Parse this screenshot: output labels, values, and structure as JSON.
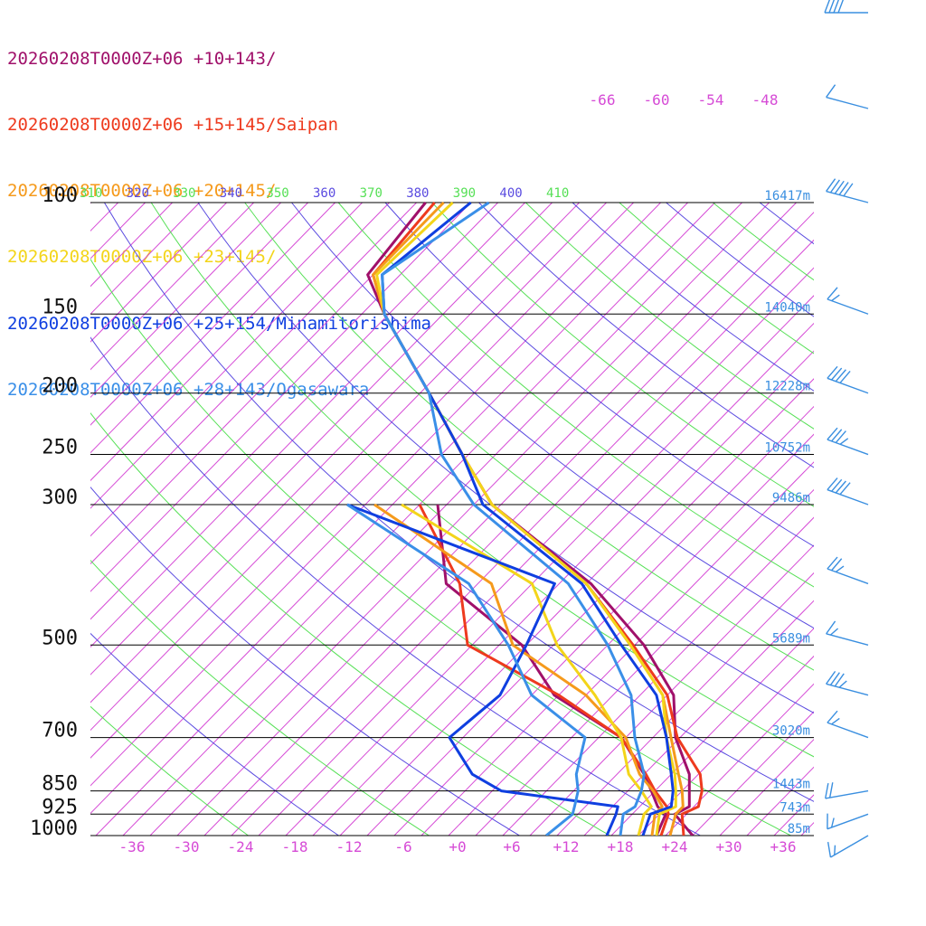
{
  "legend": [
    {
      "label": "20260208T0000Z+06 +10+143/",
      "color": "#a0106a"
    },
    {
      "label": "20260208T0000Z+06 +15+145/Saipan",
      "color": "#ee3a1e"
    },
    {
      "label": "20260208T0000Z+06 +20+145/",
      "color": "#f59a1c"
    },
    {
      "label": "20260208T0000Z+06 +23+145/",
      "color": "#f3d51a"
    },
    {
      "label": "20260208T0000Z+06 +25+154/Minamitorishima",
      "color": "#0f3fe0"
    },
    {
      "label": "20260208T0000Z+06 +28+143/Ogasawara",
      "color": "#3a8fe8"
    }
  ],
  "colors": {
    "isotherm": "#d64bd6",
    "dry_adiabat": "#5a4be0",
    "moist_adiabat": "#56e056",
    "isobar": "#000000",
    "height": "#3a8fe0",
    "barb": "#3a8fe0"
  },
  "chart_data": {
    "type": "skew-t",
    "pressure_levels": [
      {
        "p": 100,
        "label": "100",
        "height": "16417m"
      },
      {
        "p": 150,
        "label": "150",
        "height": "14040m"
      },
      {
        "p": 200,
        "label": "200",
        "height": "12228m"
      },
      {
        "p": 250,
        "label": "250",
        "height": "10752m"
      },
      {
        "p": 300,
        "label": "300",
        "height": "9486m"
      },
      {
        "p": 500,
        "label": "500",
        "height": "5689m"
      },
      {
        "p": 700,
        "label": "700",
        "height": "3020m"
      },
      {
        "p": 850,
        "label": "850",
        "height": "1443m"
      },
      {
        "p": 925,
        "label": "925",
        "height": "743m"
      },
      {
        "p": 1000,
        "label": "1000",
        "height": "85m"
      }
    ],
    "temperature_ticks": [
      "-36",
      "-30",
      "-24",
      "-18",
      "-12",
      "-6",
      "+0",
      "+6",
      "+12",
      "+18",
      "+24",
      "+30",
      "+36"
    ],
    "top_isotherm_labels": [
      "-66",
      "-60",
      "-54",
      "-48"
    ],
    "theta_labels": [
      {
        "text": "310",
        "kind": "moist"
      },
      {
        "text": "320",
        "kind": "dry"
      },
      {
        "text": "330",
        "kind": "moist"
      },
      {
        "text": "340",
        "kind": "dry"
      },
      {
        "text": "350",
        "kind": "moist"
      },
      {
        "text": "360",
        "kind": "dry"
      },
      {
        "text": "370",
        "kind": "moist"
      },
      {
        "text": "380",
        "kind": "dry"
      },
      {
        "text": "390",
        "kind": "moist"
      },
      {
        "text": "400",
        "kind": "dry"
      },
      {
        "text": "410",
        "kind": "moist"
      }
    ],
    "xlim": [
      -40,
      40
    ],
    "ylim": [
      1000,
      100
    ],
    "series": [
      {
        "name": "20260208T0000Z+06 +10+143/",
        "temperature": [
          [
            1000,
            26
          ],
          [
            925,
            21.7
          ],
          [
            900,
            22.5
          ],
          [
            850,
            20.8
          ],
          [
            800,
            19
          ],
          [
            700,
            13.5
          ],
          [
            600,
            8.7
          ],
          [
            500,
            0
          ],
          [
            400,
            -12.5
          ],
          [
            300,
            -32
          ],
          [
            250,
            -40.7
          ],
          [
            200,
            -51
          ],
          [
            150,
            -64.5
          ],
          [
            130,
            -70.6
          ],
          [
            100,
            -72
          ]
        ],
        "dewpoint": [
          [
            1000,
            22
          ],
          [
            925,
            20.7
          ],
          [
            900,
            19
          ],
          [
            850,
            16.6
          ],
          [
            800,
            14
          ],
          [
            700,
            7.5
          ],
          [
            600,
            -4.5
          ],
          [
            500,
            -13.5
          ],
          [
            400,
            -28.5
          ],
          [
            300,
            -38
          ]
        ]
      },
      {
        "name": "20260208T0000Z+06 +15+145/Saipan",
        "temperature": [
          [
            1000,
            25
          ],
          [
            925,
            22.5
          ],
          [
            900,
            23.5
          ],
          [
            850,
            22.2
          ],
          [
            800,
            20.2
          ],
          [
            700,
            13.7
          ],
          [
            600,
            8
          ],
          [
            500,
            -1.2
          ],
          [
            400,
            -13
          ],
          [
            300,
            -32
          ],
          [
            250,
            -40.7
          ],
          [
            200,
            -51
          ],
          [
            150,
            -64.5
          ],
          [
            130,
            -70
          ],
          [
            100,
            -71
          ]
        ],
        "dewpoint": [
          [
            1000,
            22.5
          ],
          [
            925,
            21
          ],
          [
            900,
            20
          ],
          [
            850,
            17
          ],
          [
            800,
            14.2
          ],
          [
            700,
            7.5
          ],
          [
            600,
            -4
          ],
          [
            500,
            -19.5
          ],
          [
            400,
            -27
          ],
          [
            300,
            -40
          ]
        ]
      },
      {
        "name": "20260208T0000Z+06 +20+145/",
        "temperature": [
          [
            1000,
            23.5
          ],
          [
            925,
            21.8
          ],
          [
            900,
            21.8
          ],
          [
            850,
            20
          ],
          [
            800,
            17.8
          ],
          [
            700,
            13
          ],
          [
            600,
            7.5
          ],
          [
            500,
            -1.5
          ],
          [
            400,
            -13
          ],
          [
            300,
            -32
          ],
          [
            250,
            -40.7
          ],
          [
            200,
            -51
          ],
          [
            150,
            -64.5
          ],
          [
            130,
            -70
          ],
          [
            100,
            -70
          ]
        ],
        "dewpoint": [
          [
            1000,
            21.5
          ],
          [
            925,
            19.5
          ],
          [
            900,
            19.5
          ],
          [
            850,
            16.8
          ],
          [
            800,
            13.5
          ],
          [
            700,
            8
          ],
          [
            600,
            -1
          ],
          [
            500,
            -14.5
          ],
          [
            400,
            -23.5
          ],
          [
            300,
            -45
          ]
        ]
      },
      {
        "name": "20260208T0000Z+06 +23+145/",
        "temperature": [
          [
            1000,
            22
          ],
          [
            925,
            20
          ],
          [
            900,
            21
          ],
          [
            850,
            19.3
          ],
          [
            800,
            17.4
          ],
          [
            700,
            12.5
          ],
          [
            600,
            7.5
          ],
          [
            500,
            -1.5
          ],
          [
            400,
            -13
          ],
          [
            300,
            -32
          ],
          [
            250,
            -40.7
          ],
          [
            200,
            -51
          ],
          [
            150,
            -64.5
          ],
          [
            130,
            -69.6
          ],
          [
            100,
            -69
          ]
        ],
        "dewpoint": [
          [
            1000,
            20
          ],
          [
            925,
            18.3
          ],
          [
            900,
            18.3
          ],
          [
            850,
            15.5
          ],
          [
            800,
            12.3
          ],
          [
            700,
            7.5
          ],
          [
            600,
            0
          ],
          [
            500,
            -9.6
          ],
          [
            400,
            -19
          ],
          [
            300,
            -42
          ]
        ]
      },
      {
        "name": "20260208T0000Z+06 +25+154/Minamitorishima",
        "temperature": [
          [
            1000,
            20.5
          ],
          [
            925,
            19
          ],
          [
            900,
            20.5
          ],
          [
            850,
            19
          ],
          [
            800,
            17
          ],
          [
            700,
            12.5
          ],
          [
            600,
            6.8
          ],
          [
            500,
            -2.5
          ],
          [
            400,
            -13.5
          ],
          [
            300,
            -33
          ],
          [
            250,
            -40.7
          ],
          [
            200,
            -51
          ],
          [
            150,
            -64.5
          ],
          [
            130,
            -69
          ],
          [
            100,
            -67
          ]
        ],
        "dewpoint": [
          [
            1000,
            16.5
          ],
          [
            925,
            15.2
          ],
          [
            900,
            14.6
          ],
          [
            850,
            0
          ],
          [
            800,
            -5
          ],
          [
            700,
            -11.5
          ],
          [
            600,
            -10.5
          ],
          [
            500,
            -13
          ],
          [
            400,
            -16.5
          ],
          [
            300,
            -48
          ]
        ]
      },
      {
        "name": "20260208T0000Z+06 +28+143/Ogasawara",
        "temperature": [
          [
            1000,
            18
          ],
          [
            925,
            16
          ],
          [
            900,
            16.5
          ],
          [
            850,
            15.5
          ],
          [
            800,
            14
          ],
          [
            700,
            9
          ],
          [
            600,
            4
          ],
          [
            500,
            -4
          ],
          [
            400,
            -15
          ],
          [
            300,
            -34
          ],
          [
            250,
            -43
          ],
          [
            200,
            -51
          ],
          [
            150,
            -64.5
          ],
          [
            130,
            -69
          ],
          [
            100,
            -65
          ]
        ],
        "dewpoint": [
          [
            1000,
            9.8
          ],
          [
            925,
            10.4
          ],
          [
            900,
            9.8
          ],
          [
            850,
            8.5
          ],
          [
            800,
            6.5
          ],
          [
            700,
            3.5
          ],
          [
            600,
            -7
          ],
          [
            500,
            -15
          ],
          [
            400,
            -26
          ],
          [
            300,
            -48
          ]
        ]
      }
    ],
    "wind_barbs": [
      {
        "p": 70,
        "direction": 270,
        "speed_kt": 40
      },
      {
        "p": 85,
        "direction": 285,
        "speed_kt": 10
      },
      {
        "p": 100,
        "direction": 285,
        "speed_kt": 50
      },
      {
        "p": 150,
        "direction": 290,
        "speed_kt": 15
      },
      {
        "p": 200,
        "direction": 290,
        "speed_kt": 40
      },
      {
        "p": 250,
        "direction": 290,
        "speed_kt": 35
      },
      {
        "p": 300,
        "direction": 290,
        "speed_kt": 40
      },
      {
        "p": 400,
        "direction": 290,
        "speed_kt": 25
      },
      {
        "p": 500,
        "direction": 285,
        "speed_kt": 15
      },
      {
        "p": 600,
        "direction": 285,
        "speed_kt": 35
      },
      {
        "p": 700,
        "direction": 290,
        "speed_kt": 15
      },
      {
        "p": 850,
        "direction": 260,
        "speed_kt": 20
      },
      {
        "p": 925,
        "direction": 250,
        "speed_kt": 15
      },
      {
        "p": 1000,
        "direction": 240,
        "speed_kt": 15
      }
    ],
    "grid": true
  }
}
